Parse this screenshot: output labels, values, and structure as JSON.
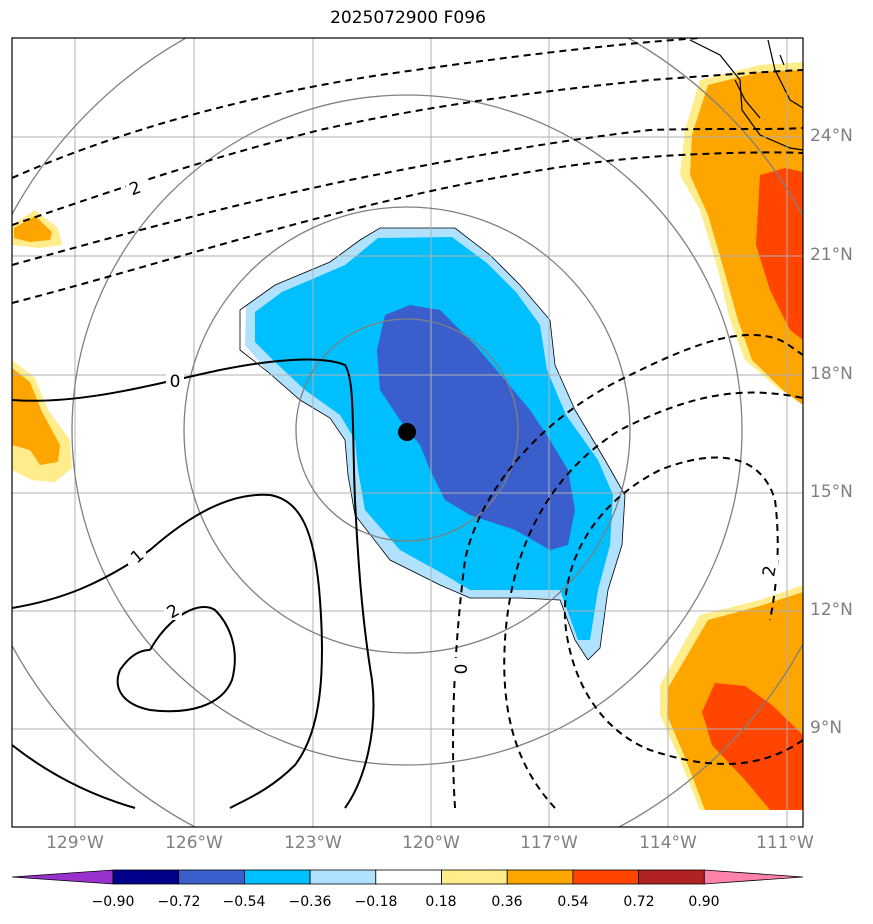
{
  "title": "2025072900 F096",
  "map": {
    "lon_range": [
      -131,
      -111
    ],
    "lat_range": [
      7,
      27
    ],
    "center_marker": {
      "lon": -120.7,
      "lat": 16.5
    },
    "range_rings_deg": [
      2.7,
      5.5,
      8.5
    ],
    "contour_labels": [
      "0",
      "2",
      "1",
      "2",
      "0",
      "2"
    ],
    "lon_labels": [
      "129°W",
      "126°W",
      "123°W",
      "120°W",
      "117°W",
      "114°W",
      "111°W"
    ],
    "lat_labels": [
      "24°N",
      "21°N",
      "18°N",
      "15°N",
      "12°N",
      "9°N"
    ],
    "colors": {
      "dark_blue": "#3a5fcd",
      "blue": "#00bfff",
      "light_blue": "#b0e2ff",
      "yellow": "#ffec8b",
      "orange": "#ffa500",
      "red_orange": "#ff4500"
    }
  },
  "colorbar": {
    "labels": [
      "−0.90",
      "−0.72",
      "−0.54",
      "−0.36",
      "−0.18",
      "0.18",
      "0.36",
      "0.54",
      "0.72",
      "0.90"
    ],
    "colors": [
      "#9932cc",
      "#00008b",
      "#3a5fcd",
      "#00bfff",
      "#b0e2ff",
      "#ffffff",
      "#ffec8b",
      "#ffa500",
      "#ff4500",
      "#b22222",
      "#ff82ab"
    ]
  }
}
